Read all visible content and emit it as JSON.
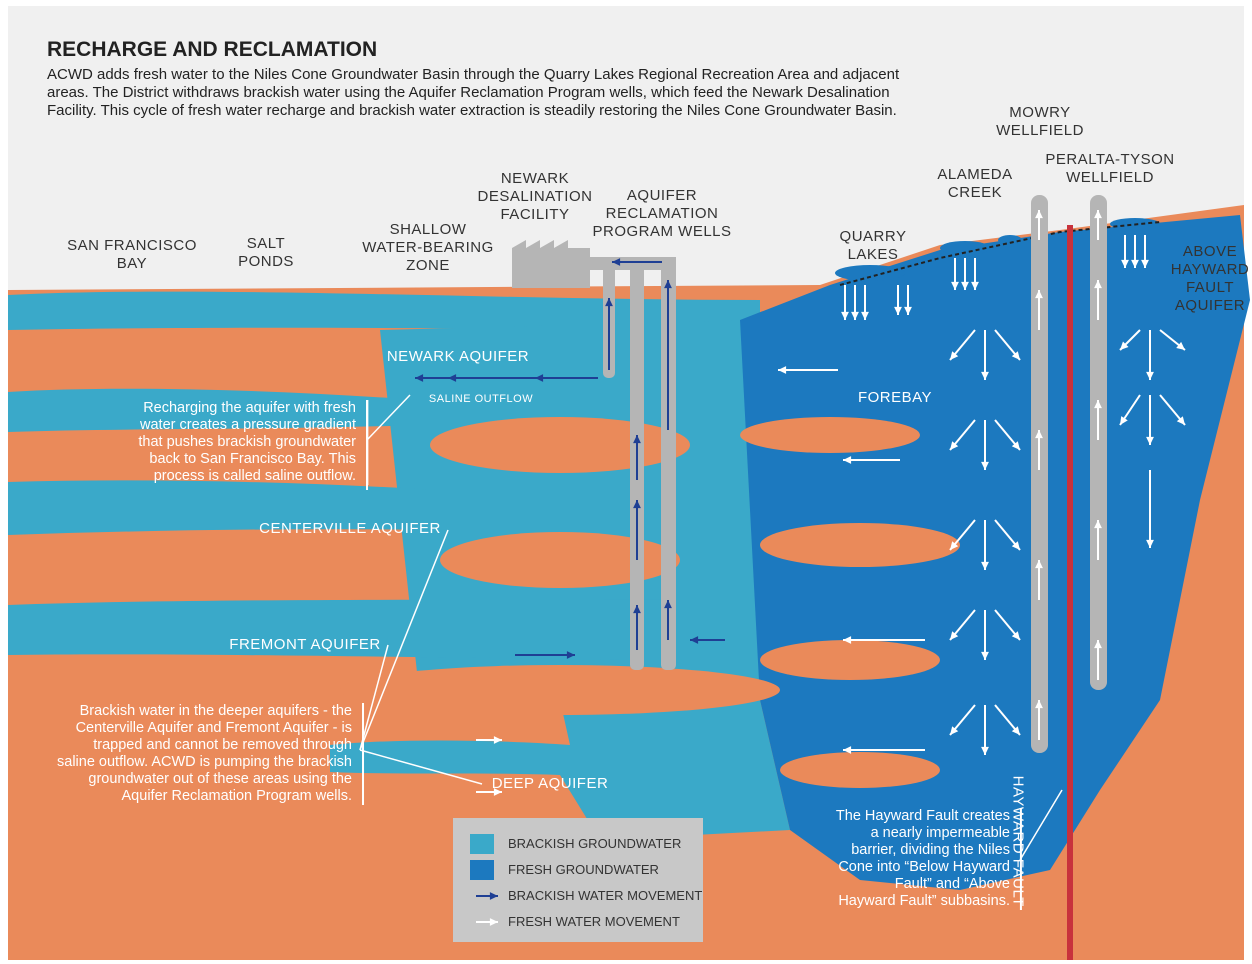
{
  "header": {
    "title": "RECHARGE AND RECLAMATION",
    "description": [
      "ACWD adds fresh water to the Niles Cone Groundwater Basin through the Quarry Lakes Regional Recreation Area and adjacent",
      "areas. The District withdraws brackish water using the Aquifer Reclamation Program wells, which feed the Newark Desalination",
      "Facility. This cycle of fresh water recharge and brackish water extraction is steadily restoring the Niles Cone Groundwater Basin."
    ]
  },
  "labels": [
    {
      "lines": [
        "SAN FRANCISCO",
        "BAY"
      ]
    },
    {
      "lines": [
        "SALT",
        "PONDS"
      ]
    },
    {
      "lines": [
        "SHALLOW",
        "WATER-BEARING",
        "ZONE"
      ]
    },
    {
      "lines": [
        "NEWARK",
        "DESALINATION",
        "FACILITY"
      ]
    },
    {
      "lines": [
        "AQUIFER",
        "RECLAMATION",
        "PROGRAM WELLS"
      ]
    },
    {
      "lines": [
        "QUARRY",
        "LAKES"
      ]
    },
    {
      "lines": [
        "ALAMEDA",
        "CREEK"
      ]
    },
    {
      "lines": [
        "MOWRY",
        "WELLFIELD"
      ]
    },
    {
      "lines": [
        "PERALTA-TYSON",
        "WELLFIELD"
      ]
    },
    {
      "lines": [
        "ABOVE",
        "HAYWARD",
        "FAULT",
        "AQUIFER"
      ]
    },
    {
      "lines": [
        "NEWARK AQUIFER"
      ]
    },
    {
      "lines": [
        "SALINE OUTFLOW"
      ]
    },
    {
      "lines": [
        "FOREBAY"
      ]
    },
    {
      "lines": [
        "CENTERVILLE AQUIFER"
      ]
    },
    {
      "lines": [
        "FREMONT AQUIFER"
      ]
    },
    {
      "lines": [
        "DEEP AQUIFER"
      ]
    },
    {
      "lines": [
        "HAYWARD FAULT"
      ]
    }
  ],
  "callouts": [
    {
      "lines": [
        "Recharging the aquifer with fresh",
        "water creates a pressure gradient",
        "that pushes brackish groundwater",
        "back to San Francisco Bay. This",
        "process is called saline outflow."
      ]
    },
    {
      "lines": [
        "Brackish water in the deeper aquifers - the",
        "Centerville Aquifer and Fremont Aquifer - is",
        "trapped and cannot be removed through",
        "saline outflow. ACWD is pumping the brackish",
        "groundwater out of these areas using the",
        "Aquifer Reclamation Program wells."
      ]
    },
    {
      "lines": [
        "The Hayward Fault creates",
        "a nearly impermeable",
        "barrier, dividing the Niles",
        "Cone into “Below Hayward",
        "Fault” and “Above",
        "Hayward Fault” subbasins."
      ]
    }
  ],
  "legend": {
    "items": [
      "BRACKISH GROUNDWATER",
      "FRESH GROUNDWATER",
      "BRACKISH WATER MOVEMENT",
      "FRESH WATER MOVEMENT"
    ]
  }
}
